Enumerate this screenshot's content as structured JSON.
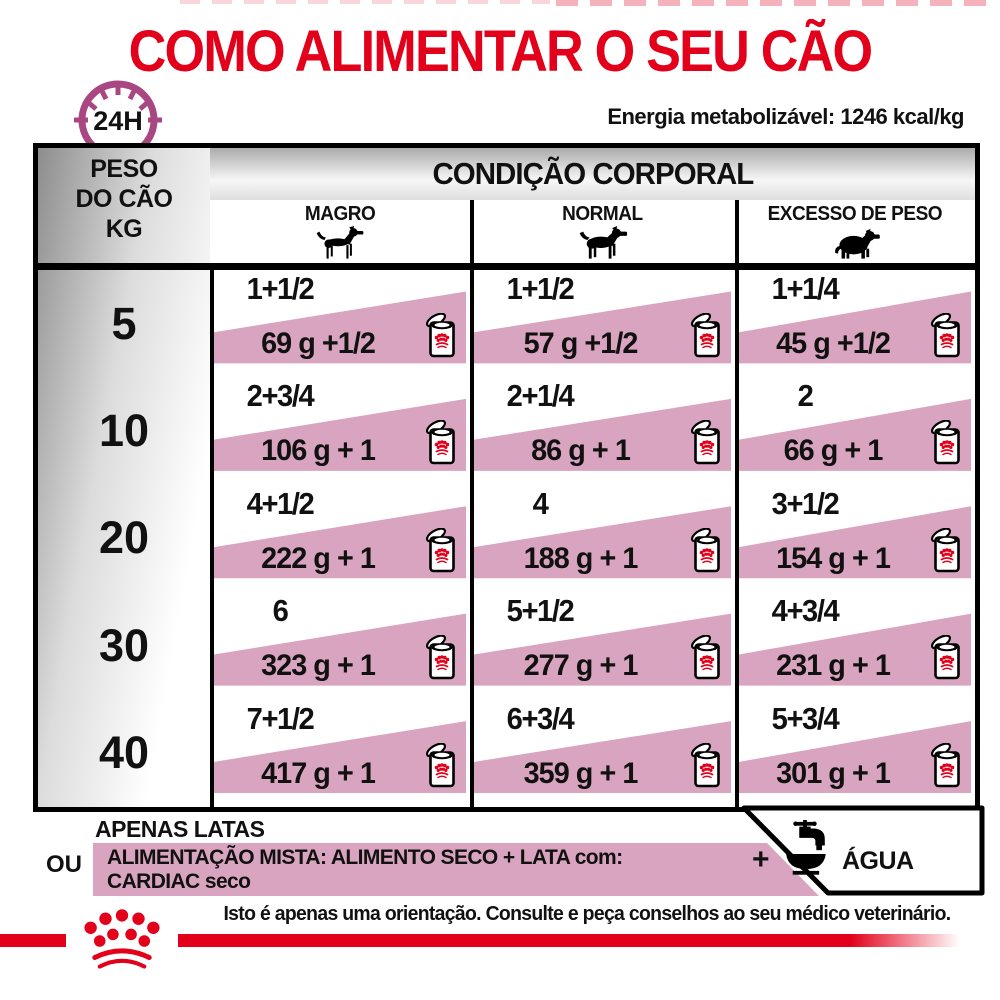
{
  "title": "COMO ALIMENTAR O SEU CÃO",
  "energy_label": "Energia metabolizável: 1246 kcal/kg",
  "clock": {
    "label": "24H"
  },
  "table": {
    "weight_header_lines": [
      "PESO",
      "DO CÃO",
      "KG"
    ],
    "condition_header": "CONDIÇÃO CORPORAL",
    "columns": [
      {
        "label": "MAGRO",
        "icon": "thin-dog-icon"
      },
      {
        "label": "NORMAL",
        "icon": "normal-dog-icon"
      },
      {
        "label": "EXCESSO DE PESO",
        "icon": "overweight-dog-icon"
      }
    ],
    "rows": [
      {
        "weight": "5",
        "cells": [
          {
            "cups": "1+1/2",
            "grams": "69 g +1/2"
          },
          {
            "cups": "1+1/2",
            "grams": "57 g +1/2"
          },
          {
            "cups": "1+1/4",
            "grams": "45 g +1/2"
          }
        ]
      },
      {
        "weight": "10",
        "cells": [
          {
            "cups": "2+3/4",
            "grams": "106 g + 1"
          },
          {
            "cups": "2+1/4",
            "grams": "86 g + 1"
          },
          {
            "cups": "2",
            "grams": "66 g + 1"
          }
        ]
      },
      {
        "weight": "20",
        "cells": [
          {
            "cups": "4+1/2",
            "grams": "222 g + 1"
          },
          {
            "cups": "4",
            "grams": "188 g + 1"
          },
          {
            "cups": "3+1/2",
            "grams": "154 g + 1"
          }
        ]
      },
      {
        "weight": "30",
        "cells": [
          {
            "cups": "6",
            "grams": "323 g + 1"
          },
          {
            "cups": "5+1/2",
            "grams": "277 g + 1"
          },
          {
            "cups": "4+3/4",
            "grams": "231 g + 1"
          }
        ]
      },
      {
        "weight": "40",
        "cells": [
          {
            "cups": "7+1/2",
            "grams": "417 g + 1"
          },
          {
            "cups": "6+3/4",
            "grams": "359 g + 1"
          },
          {
            "cups": "5+3/4",
            "grams": "301 g + 1"
          }
        ]
      }
    ]
  },
  "footer": {
    "cans_only": "APENAS LATAS",
    "or_label": "OU",
    "mixed_line1": "ALIMENTAÇÃO MISTA: ALIMENTO SECO + LATA com:",
    "mixed_line2": "CARDIAC seco",
    "plus": "+",
    "water_label": "ÁGUA"
  },
  "disclaimer": "Isto é apenas uma orientação. Consulte e peça conselhos ao seu médico veterinário.",
  "colors": {
    "red": "#e2001a",
    "pink": "#d9a4bf",
    "clock_purple": "#a84782"
  }
}
